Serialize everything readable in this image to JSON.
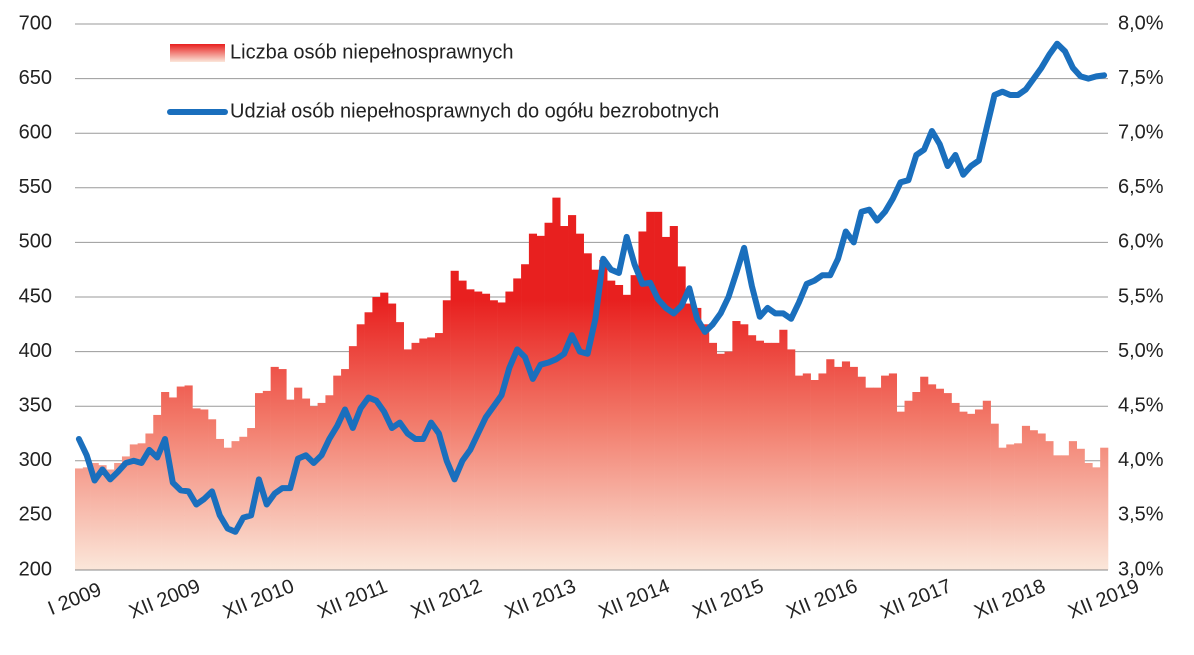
{
  "chart_data": {
    "type": "bar",
    "categories": [
      "I 2009",
      null,
      null,
      null,
      null,
      null,
      null,
      null,
      null,
      null,
      null,
      "XII 2009",
      null,
      null,
      null,
      null,
      null,
      null,
      null,
      null,
      null,
      null,
      null,
      "XII 2010",
      null,
      null,
      null,
      null,
      null,
      null,
      null,
      null,
      null,
      null,
      null,
      "XII 2011",
      null,
      null,
      null,
      null,
      null,
      null,
      null,
      null,
      null,
      null,
      null,
      "XII 2012",
      null,
      null,
      null,
      null,
      null,
      null,
      null,
      null,
      null,
      null,
      null,
      "XII 2013",
      null,
      null,
      null,
      null,
      null,
      null,
      null,
      null,
      null,
      null,
      null,
      "XII 2014",
      null,
      null,
      null,
      null,
      null,
      null,
      null,
      null,
      null,
      null,
      null,
      "XII 2015",
      null,
      null,
      null,
      null,
      null,
      null,
      null,
      null,
      null,
      null,
      null,
      "XII 2016",
      null,
      null,
      null,
      null,
      null,
      null,
      null,
      null,
      null,
      null,
      null,
      "XII 2017",
      null,
      null,
      null,
      null,
      null,
      null,
      null,
      null,
      null,
      null,
      null,
      "XII 2018",
      null,
      null,
      null,
      null,
      null,
      null,
      null,
      null,
      null,
      null,
      null,
      "XII 2019"
    ],
    "series": [
      {
        "name": "Liczba osób niepełnosprawnych",
        "color": "#e8201f",
        "type": "bar",
        "values": [
          293,
          294,
          298,
          296,
          292,
          298,
          304,
          315,
          316,
          325,
          342,
          363,
          358,
          368,
          369,
          348,
          347,
          338,
          320,
          312,
          318,
          322,
          330,
          362,
          364,
          386,
          384,
          356,
          367,
          357,
          350,
          353,
          360,
          378,
          384,
          405,
          425,
          436,
          450,
          454,
          444,
          427,
          402,
          408,
          412,
          413,
          417,
          447,
          474,
          465,
          457,
          455,
          453,
          447,
          445,
          455,
          467,
          480,
          508,
          506,
          518,
          541,
          515,
          525,
          508,
          490,
          475,
          484,
          465,
          461,
          452,
          470,
          510,
          528,
          528,
          505,
          515,
          478,
          444,
          440,
          425,
          408,
          398,
          400,
          428,
          425,
          415,
          410,
          408,
          408,
          420,
          402,
          378,
          380,
          374,
          380,
          393,
          386,
          391,
          386,
          377,
          367,
          367,
          378,
          380,
          345,
          355,
          363,
          377,
          370,
          366,
          362,
          353,
          345,
          343,
          347,
          355,
          334,
          312,
          315,
          316,
          332,
          328,
          325,
          318,
          305,
          305,
          318,
          311,
          298,
          294,
          312
        ]
      },
      {
        "name": "Udział osób niepełnosprawnych do ogółu bezrobotnych",
        "color": "#1a6fbd",
        "type": "line",
        "axis": "y2",
        "values": [
          4.2,
          4.05,
          3.82,
          3.92,
          3.83,
          3.9,
          3.98,
          4.0,
          3.98,
          4.1,
          4.03,
          4.2,
          3.8,
          3.73,
          3.72,
          3.6,
          3.65,
          3.72,
          3.5,
          3.38,
          3.35,
          3.48,
          3.5,
          3.83,
          3.6,
          3.7,
          3.75,
          3.75,
          4.02,
          4.05,
          3.98,
          4.05,
          4.2,
          4.32,
          4.47,
          4.3,
          4.48,
          4.58,
          4.55,
          4.45,
          4.3,
          4.35,
          4.25,
          4.2,
          4.2,
          4.35,
          4.25,
          4.0,
          3.83,
          4.0,
          4.1,
          4.25,
          4.4,
          4.5,
          4.6,
          4.85,
          5.02,
          4.95,
          4.75,
          4.88,
          4.9,
          4.93,
          4.98,
          5.15,
          5.0,
          4.98,
          5.3,
          5.85,
          5.75,
          5.72,
          6.05,
          5.8,
          5.62,
          5.63,
          5.48,
          5.4,
          5.35,
          5.42,
          5.58,
          5.3,
          5.18,
          5.25,
          5.35,
          5.5,
          5.72,
          5.95,
          5.6,
          5.32,
          5.4,
          5.35,
          5.35,
          5.3,
          5.45,
          5.62,
          5.65,
          5.7,
          5.7,
          5.85,
          6.1,
          6.0,
          6.28,
          6.3,
          6.2,
          6.28,
          6.4,
          6.55,
          6.57,
          6.8,
          6.85,
          7.02,
          6.9,
          6.7,
          6.8,
          6.62,
          6.7,
          6.75,
          7.05,
          7.35,
          7.38,
          7.35,
          7.35,
          7.4,
          7.5,
          7.6,
          7.72,
          7.82,
          7.75,
          7.6,
          7.52,
          7.5,
          7.52,
          7.53
        ]
      }
    ],
    "ylim": [
      200,
      700
    ],
    "yticks": [
      200,
      250,
      300,
      350,
      400,
      450,
      500,
      550,
      600,
      650,
      700
    ],
    "y2lim": [
      3.0,
      8.0
    ],
    "y2ticks": [
      {
        "value": 3.0,
        "label": "3,0%"
      },
      {
        "value": 3.5,
        "label": "3,5%"
      },
      {
        "value": 4.0,
        "label": "4,0%"
      },
      {
        "value": 4.5,
        "label": "4,5%"
      },
      {
        "value": 5.0,
        "label": "5,0%"
      },
      {
        "value": 5.5,
        "label": "5,5%"
      },
      {
        "value": 6.0,
        "label": "6,0%"
      },
      {
        "value": 6.5,
        "label": "6,5%"
      },
      {
        "value": 7.0,
        "label": "7,0%"
      },
      {
        "value": 7.5,
        "label": "7,5%"
      },
      {
        "value": 8.0,
        "label": "8,0%"
      }
    ],
    "grid": true,
    "legend": "top-left"
  }
}
